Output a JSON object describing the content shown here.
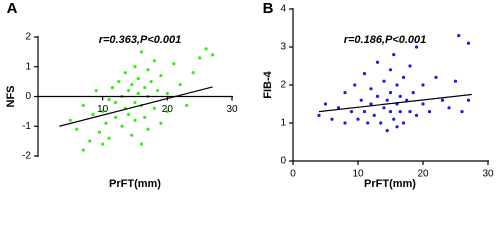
{
  "chart_data": [
    {
      "type": "scatter",
      "panel_label": "A",
      "annotation": "r=0.363,P<0.001",
      "xlabel": "PrFT(mm)",
      "ylabel": "NFS",
      "color": "#33ee11",
      "x_axis_crosses_zero": true,
      "xlim": [
        0,
        30
      ],
      "xticks": [
        10,
        20,
        30
      ],
      "ylim": [
        -2,
        2
      ],
      "yticks": [
        -2,
        -1,
        0,
        1,
        2
      ],
      "x": [
        5,
        6,
        7,
        8,
        8.5,
        9,
        9.5,
        10,
        10.5,
        11,
        11,
        11.5,
        12,
        12,
        12.5,
        13,
        13,
        13.5,
        13.5,
        14,
        14,
        14.5,
        14.5,
        15,
        15,
        15,
        15.5,
        15.5,
        16,
        16,
        16,
        16.5,
        16.5,
        17,
        17,
        17,
        17.5,
        18,
        18,
        18.5,
        19,
        19,
        20,
        20,
        21,
        22,
        23,
        24,
        25,
        26,
        27,
        7,
        10
      ],
      "values": [
        -0.8,
        -1.1,
        -0.3,
        -1.5,
        -0.6,
        0.2,
        -1.2,
        -0.5,
        -0.9,
        -0.1,
        -1.4,
        0.3,
        -0.7,
        -0.2,
        0.5,
        -1.0,
        0.0,
        -0.4,
        0.8,
        -0.6,
        0.2,
        -1.3,
        0.4,
        -0.2,
        1.0,
        -0.8,
        0.1,
        0.6,
        -0.3,
        1.5,
        -1.6,
        0.3,
        -0.7,
        0.0,
        0.9,
        -1.1,
        0.5,
        -0.4,
        1.2,
        0.2,
        -0.9,
        0.7,
        0.1,
        -0.5,
        1.1,
        0.4,
        -0.3,
        0.8,
        1.3,
        1.6,
        1.4,
        -1.8,
        -1.6
      ],
      "fit_line": {
        "x": [
          3.3,
          27
        ],
        "values": [
          -1.0,
          0.32
        ]
      }
    },
    {
      "type": "scatter",
      "panel_label": "B",
      "annotation": "r=0.186,P<0.001",
      "xlabel": "PrFT(mm)",
      "ylabel": "FIB-4",
      "color": "#1a1aee",
      "x_axis_crosses_zero": false,
      "xlim": [
        0,
        30
      ],
      "xticks": [
        0,
        10,
        20,
        30
      ],
      "ylim": [
        0,
        4
      ],
      "yticks": [
        0,
        1,
        2,
        3,
        4
      ],
      "x": [
        4,
        5,
        6,
        7,
        8,
        8,
        9,
        9.5,
        10,
        10.5,
        11,
        11,
        11.5,
        12,
        12,
        12.5,
        13,
        13,
        13.5,
        14,
        14,
        14.5,
        14.5,
        15,
        15,
        15,
        15.5,
        15.5,
        16,
        16,
        16,
        16.5,
        16.5,
        17,
        17,
        17.5,
        18,
        18,
        18.5,
        19,
        19,
        20,
        20,
        21,
        22,
        23,
        24,
        25,
        25.5,
        26,
        27,
        27
      ],
      "values": [
        1.2,
        1.5,
        1.1,
        1.4,
        1.0,
        1.8,
        1.3,
        2.0,
        1.1,
        1.6,
        1.3,
        2.3,
        1.0,
        1.5,
        1.9,
        1.2,
        1.7,
        2.6,
        1.0,
        1.4,
        2.1,
        0.8,
        1.6,
        1.3,
        2.4,
        1.8,
        1.1,
        2.8,
        1.5,
        2.0,
        0.9,
        1.7,
        1.3,
        2.2,
        1.0,
        1.6,
        1.3,
        2.5,
        1.8,
        1.2,
        3.0,
        1.5,
        2.0,
        1.3,
        2.2,
        1.6,
        1.4,
        2.1,
        3.3,
        1.3,
        3.1,
        1.6
      ],
      "fit_line": {
        "x": [
          4,
          27.5
        ],
        "values": [
          1.3,
          1.75
        ]
      }
    }
  ]
}
